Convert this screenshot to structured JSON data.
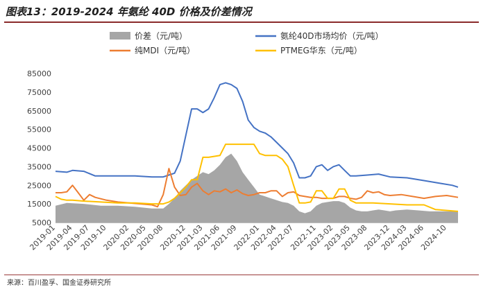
{
  "figure": {
    "title": "图表13：2019-2024 年氨纶 40D 价格及价差情况",
    "source": "来源：百川盈孚、国金证券研究所"
  },
  "colors": {
    "spread": "#a6a6a6",
    "spandex": "#4472c4",
    "mdi": "#ed7d31",
    "ptmeg": "#ffc000",
    "rule": "#8a2a2a"
  },
  "chart_data": {
    "type": "line",
    "title": "",
    "xlabel": "",
    "ylabel": "",
    "ylim": [
      5000,
      85000
    ],
    "yticks": [
      5000,
      15000,
      25000,
      35000,
      45000,
      55000,
      65000,
      75000,
      85000
    ],
    "xrange": [
      "2019-01",
      "2024-12"
    ],
    "xticks": [
      "2019-01",
      "2019-04",
      "2019-07",
      "2019-10",
      "2020-02",
      "2020-05",
      "2020-08",
      "2020-12",
      "2021-03",
      "2021-06",
      "2021-09",
      "2022-01",
      "2022-04",
      "2022-07",
      "2022-11",
      "2023-02",
      "2023-05",
      "2023-08",
      "2023-12",
      "2024-03",
      "2024-06",
      "2024-10"
    ],
    "legend": {
      "position": "top",
      "columns": 2
    },
    "series": [
      {
        "name": "价差（元/吨）",
        "kind": "area",
        "color": "#a6a6a6",
        "x": [
          "2019-01",
          "2019-03",
          "2019-06",
          "2019-09",
          "2019-12",
          "2020-03",
          "2020-06",
          "2020-08",
          "2020-09",
          "2020-10",
          "2020-11",
          "2020-12",
          "2021-01",
          "2021-02",
          "2021-03",
          "2021-04",
          "2021-05",
          "2021-06",
          "2021-07",
          "2021-08",
          "2021-09",
          "2021-10",
          "2021-11",
          "2021-12",
          "2022-01",
          "2022-02",
          "2022-03",
          "2022-04",
          "2022-05",
          "2022-06",
          "2022-07",
          "2022-08",
          "2022-09",
          "2022-10",
          "2022-11",
          "2022-12",
          "2023-01",
          "2023-02",
          "2023-03",
          "2023-04",
          "2023-05",
          "2023-06",
          "2023-07",
          "2023-08",
          "2023-09",
          "2023-10",
          "2023-11",
          "2023-12",
          "2024-01",
          "2024-03",
          "2024-05",
          "2024-07",
          "2024-09",
          "2024-12"
        ],
        "y": [
          14000,
          15500,
          15000,
          14000,
          14000,
          13500,
          12500,
          12500,
          15000,
          18000,
          22000,
          25000,
          28000,
          30000,
          32000,
          31000,
          33000,
          36000,
          40000,
          42000,
          38000,
          32000,
          28000,
          24000,
          20000,
          19000,
          18000,
          17000,
          16000,
          15500,
          14000,
          11000,
          10000,
          11000,
          14000,
          15500,
          16000,
          16500,
          16500,
          15500,
          13000,
          11500,
          11000,
          11000,
          11500,
          12000,
          11500,
          11000,
          11500,
          12000,
          11500,
          11000,
          11000,
          11000
        ]
      },
      {
        "name": "氨纶40D市场均价（元/吨）",
        "kind": "line",
        "color": "#4472c4",
        "x": [
          "2019-01",
          "2019-03",
          "2019-04",
          "2019-06",
          "2019-08",
          "2019-12",
          "2020-03",
          "2020-06",
          "2020-08",
          "2020-09",
          "2020-10",
          "2020-11",
          "2020-12",
          "2021-01",
          "2021-02",
          "2021-03",
          "2021-04",
          "2021-05",
          "2021-06",
          "2021-07",
          "2021-08",
          "2021-09",
          "2021-10",
          "2021-11",
          "2021-12",
          "2022-01",
          "2022-02",
          "2022-03",
          "2022-04",
          "2022-05",
          "2022-06",
          "2022-07",
          "2022-08",
          "2022-09",
          "2022-10",
          "2022-11",
          "2022-12",
          "2023-01",
          "2023-02",
          "2023-03",
          "2023-04",
          "2023-05",
          "2023-06",
          "2023-08",
          "2023-10",
          "2023-12",
          "2024-03",
          "2024-06",
          "2024-09",
          "2024-11",
          "2024-12"
        ],
        "y": [
          32500,
          32000,
          33000,
          32500,
          30000,
          30000,
          30000,
          29500,
          29500,
          30500,
          31500,
          38000,
          52000,
          66000,
          66000,
          64000,
          66000,
          72000,
          79000,
          80000,
          79000,
          77000,
          70000,
          60000,
          56000,
          54000,
          53000,
          51000,
          48000,
          45000,
          42000,
          37000,
          29000,
          29000,
          30000,
          35000,
          36000,
          33000,
          35000,
          36000,
          33000,
          30000,
          30000,
          30500,
          31000,
          29500,
          29000,
          27500,
          26000,
          25000,
          24000
        ]
      },
      {
        "name": "纯MDI（元/吨）",
        "kind": "line",
        "color": "#ed7d31",
        "x": [
          "2019-01",
          "2019-02",
          "2019-03",
          "2019-04",
          "2019-05",
          "2019-06",
          "2019-07",
          "2019-08",
          "2019-10",
          "2019-12",
          "2020-02",
          "2020-04",
          "2020-06",
          "2020-07",
          "2020-08",
          "2020-09",
          "2020-10",
          "2020-11",
          "2020-12",
          "2021-01",
          "2021-02",
          "2021-03",
          "2021-04",
          "2021-05",
          "2021-06",
          "2021-07",
          "2021-08",
          "2021-09",
          "2021-10",
          "2021-11",
          "2021-12",
          "2022-01",
          "2022-02",
          "2022-03",
          "2022-04",
          "2022-05",
          "2022-06",
          "2022-07",
          "2022-08",
          "2022-09",
          "2022-10",
          "2022-11",
          "2022-12",
          "2023-01",
          "2023-02",
          "2023-03",
          "2023-04",
          "2023-05",
          "2023-06",
          "2023-07",
          "2023-08",
          "2023-09",
          "2023-10",
          "2023-11",
          "2023-12",
          "2024-02",
          "2024-04",
          "2024-06",
          "2024-08",
          "2024-10",
          "2024-12"
        ],
        "y": [
          21000,
          21000,
          21500,
          25000,
          21000,
          17000,
          20000,
          18500,
          17000,
          16000,
          15500,
          15000,
          14500,
          13500,
          20000,
          34000,
          24000,
          19500,
          20000,
          24000,
          26000,
          22000,
          20000,
          22000,
          21500,
          23000,
          21000,
          22500,
          20500,
          19500,
          20000,
          21000,
          21000,
          22000,
          22000,
          19000,
          21000,
          21500,
          19500,
          19000,
          18500,
          18500,
          18000,
          18000,
          18000,
          19000,
          19000,
          18000,
          17500,
          18500,
          22000,
          21000,
          21500,
          20000,
          19500,
          20000,
          19000,
          18000,
          19000,
          19500,
          18500
        ]
      },
      {
        "name": "PTMEG华东（元/吨）",
        "kind": "line",
        "color": "#ffc000",
        "x": [
          "2019-01",
          "2019-02",
          "2019-03",
          "2019-04",
          "2019-06",
          "2019-09",
          "2019-12",
          "2020-03",
          "2020-06",
          "2020-08",
          "2020-09",
          "2020-10",
          "2020-11",
          "2020-12",
          "2021-01",
          "2021-02",
          "2021-03",
          "2021-04",
          "2021-06",
          "2021-07",
          "2021-08",
          "2021-12",
          "2022-01",
          "2022-02",
          "2022-04",
          "2022-05",
          "2022-06",
          "2022-07",
          "2022-08",
          "2022-09",
          "2022-10",
          "2022-11",
          "2022-12",
          "2023-01",
          "2023-02",
          "2023-03",
          "2023-04",
          "2023-05",
          "2023-06",
          "2023-09",
          "2023-12",
          "2024-03",
          "2024-06",
          "2024-08",
          "2024-12"
        ],
        "y": [
          19000,
          17500,
          17000,
          17000,
          16500,
          16000,
          15500,
          15500,
          15000,
          15000,
          16000,
          18000,
          21000,
          24000,
          28000,
          28000,
          40000,
          40000,
          41000,
          47000,
          47000,
          47000,
          42000,
          41000,
          41000,
          39000,
          35000,
          25000,
          15500,
          15500,
          16000,
          22000,
          22000,
          18000,
          18000,
          23000,
          23000,
          17000,
          15500,
          15500,
          15000,
          14500,
          14500,
          12000,
          11000
        ]
      }
    ]
  }
}
